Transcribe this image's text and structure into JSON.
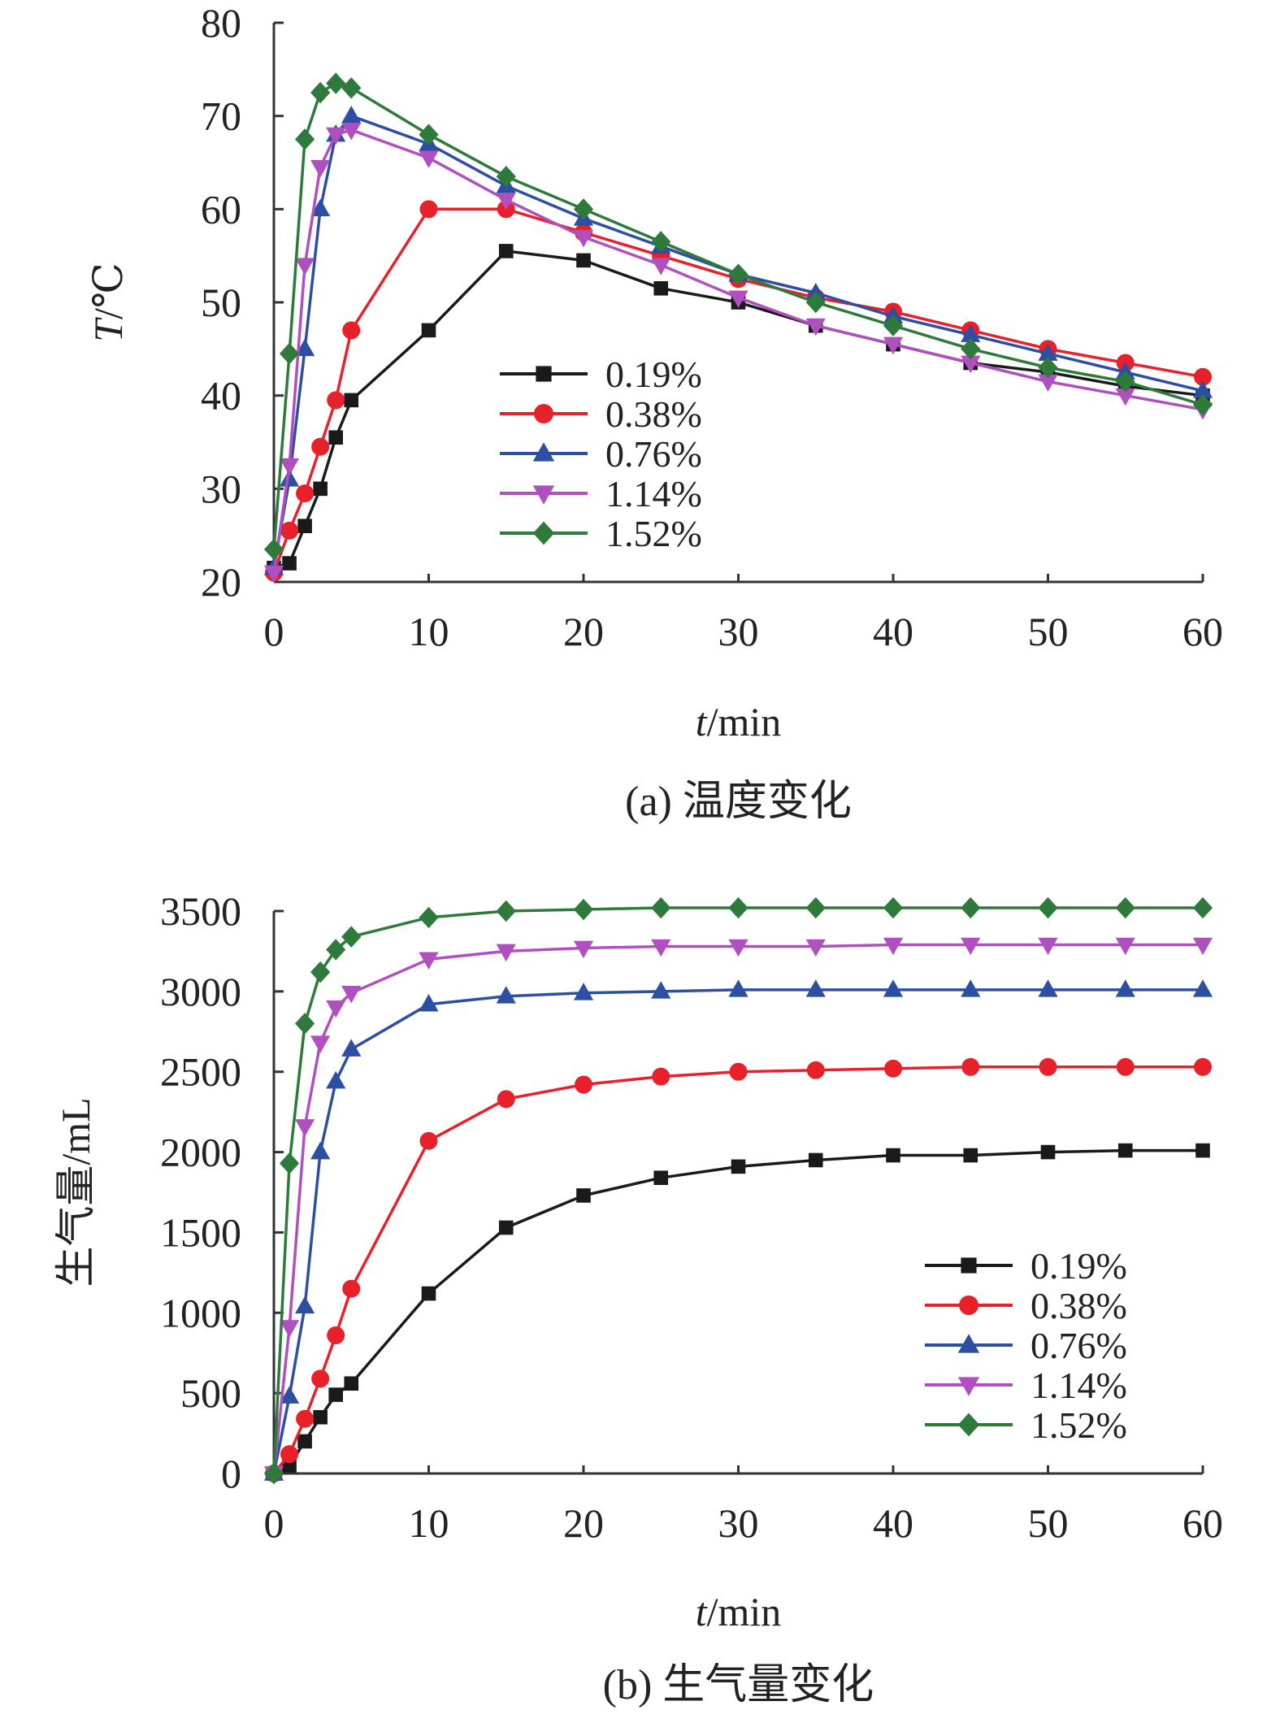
{
  "chart_data": [
    {
      "type": "line",
      "caption": "(a) 温度变化",
      "xlabel": {
        "italic": "t",
        "rest": "/min"
      },
      "ylabel": {
        "italic": "T",
        "rest": "/℃"
      },
      "xlim": [
        0,
        60
      ],
      "ylim": [
        20,
        80
      ],
      "xticks": [
        0,
        10,
        20,
        30,
        40,
        50,
        60
      ],
      "yticks": [
        20,
        30,
        40,
        50,
        60,
        70,
        80
      ],
      "grid": false,
      "legend_position": "center",
      "x": [
        0,
        1,
        2,
        3,
        4,
        5,
        10,
        15,
        20,
        25,
        30,
        35,
        40,
        45,
        50,
        55,
        60
      ],
      "series": [
        {
          "name": "0.19%",
          "color": "#1a1a1a",
          "marker": "square",
          "values": [
            21.5,
            22,
            26,
            30,
            35.5,
            39.5,
            47,
            55.5,
            54.5,
            51.5,
            50,
            47.5,
            45.5,
            43.5,
            42.5,
            41,
            40
          ]
        },
        {
          "name": "0.38%",
          "color": "#e8202a",
          "marker": "circle",
          "values": [
            21,
            25.5,
            29.5,
            34.5,
            39.5,
            47,
            60,
            60,
            57.5,
            55,
            52.5,
            50.5,
            49,
            47,
            45,
            43.5,
            42
          ]
        },
        {
          "name": "0.76%",
          "color": "#2c4ea3",
          "marker": "triangle-up",
          "values": [
            21.5,
            31,
            45,
            60,
            68,
            70,
            67,
            62.5,
            59,
            56,
            53,
            51,
            48.5,
            46.5,
            44.5,
            42.5,
            40.5
          ]
        },
        {
          "name": "1.14%",
          "color": "#b04fc0",
          "marker": "triangle-down",
          "values": [
            21,
            32.5,
            54,
            64.5,
            68,
            68.5,
            65.5,
            61,
            57,
            54,
            50.5,
            47.5,
            45.5,
            43.5,
            41.5,
            40,
            38.5
          ]
        },
        {
          "name": "1.52%",
          "color": "#2e7a3a",
          "marker": "diamond",
          "values": [
            23.5,
            44.5,
            67.5,
            72.5,
            73.5,
            73,
            68,
            63.5,
            60,
            56.5,
            53,
            50,
            47.5,
            45,
            43,
            41.5,
            39
          ]
        }
      ]
    },
    {
      "type": "line",
      "caption": "(b) 生气量变化",
      "xlabel": {
        "italic": "t",
        "rest": "/min"
      },
      "ylabel": {
        "italic": "",
        "rest": "生气量/mL"
      },
      "xlim": [
        0,
        60
      ],
      "ylim": [
        0,
        3500
      ],
      "xticks": [
        0,
        10,
        20,
        30,
        40,
        50,
        60
      ],
      "yticks": [
        0,
        500,
        1000,
        1500,
        2000,
        2500,
        3000,
        3500
      ],
      "grid": false,
      "legend_position": "bottom-right",
      "x": [
        0,
        1,
        2,
        3,
        4,
        5,
        10,
        15,
        20,
        25,
        30,
        35,
        40,
        45,
        50,
        55,
        60
      ],
      "series": [
        {
          "name": "0.19%",
          "color": "#1a1a1a",
          "marker": "square",
          "values": [
            0,
            50,
            200,
            350,
            490,
            560,
            1120,
            1530,
            1730,
            1840,
            1910,
            1950,
            1980,
            1980,
            2000,
            2010,
            2010
          ]
        },
        {
          "name": "0.38%",
          "color": "#e8202a",
          "marker": "circle",
          "values": [
            0,
            120,
            340,
            590,
            860,
            1150,
            2070,
            2330,
            2420,
            2470,
            2500,
            2510,
            2520,
            2530,
            2530,
            2530,
            2530
          ]
        },
        {
          "name": "0.76%",
          "color": "#2c4ea3",
          "marker": "triangle-up",
          "values": [
            0,
            480,
            1040,
            2000,
            2440,
            2640,
            2920,
            2970,
            2990,
            3000,
            3010,
            3010,
            3010,
            3010,
            3010,
            3010,
            3010
          ]
        },
        {
          "name": "1.14%",
          "color": "#b04fc0",
          "marker": "triangle-down",
          "values": [
            0,
            910,
            2160,
            2680,
            2900,
            2990,
            3200,
            3250,
            3270,
            3280,
            3280,
            3280,
            3290,
            3290,
            3290,
            3290,
            3290
          ]
        },
        {
          "name": "1.52%",
          "color": "#2e7a3a",
          "marker": "diamond",
          "values": [
            0,
            1930,
            2800,
            3120,
            3260,
            3340,
            3460,
            3500,
            3510,
            3520,
            3520,
            3520,
            3520,
            3520,
            3520,
            3520,
            3520
          ]
        }
      ]
    }
  ]
}
